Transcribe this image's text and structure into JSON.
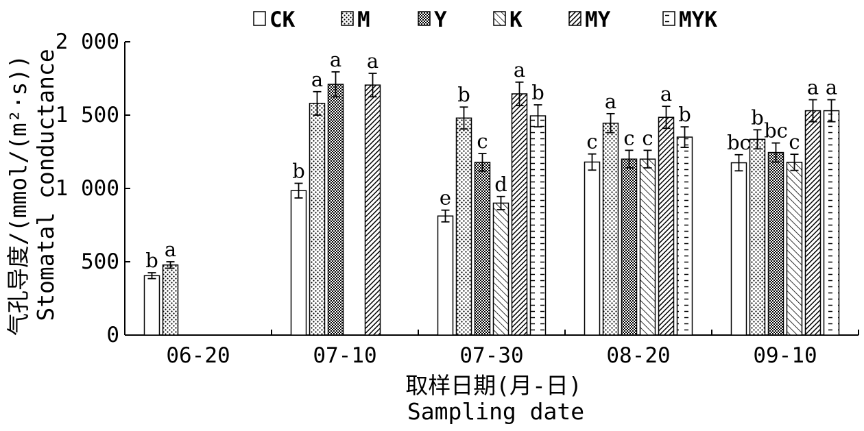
{
  "chart_data": {
    "type": "bar",
    "categories": [
      "06-20",
      "07-10",
      "07-30",
      "08-20",
      "09-10"
    ],
    "xlabel_cn": "取样日期(月-日)",
    "xlabel_en": "Sampling date",
    "ylabel_cn": "气孔导度/(mmol/(m²·s))",
    "ylabel_en": "Stomatal conductance",
    "ylim": [
      0,
      2000
    ],
    "yticks": [
      0,
      500,
      1000,
      1500,
      2000
    ],
    "ytick_labels": [
      "0",
      "500",
      "1 000",
      "1 500",
      "2 000"
    ],
    "legend_position": "top",
    "series": [
      {
        "name": "CK",
        "pattern": "plain",
        "values": [
          405,
          985,
          812,
          1180,
          1175
        ],
        "errors": [
          20,
          50,
          40,
          55,
          55
        ],
        "labels": [
          "b",
          "b",
          "e",
          "c",
          "bc"
        ]
      },
      {
        "name": "M",
        "pattern": "dots",
        "values": [
          478,
          1580,
          1480,
          1445,
          1335
        ],
        "errors": [
          22,
          80,
          75,
          65,
          65
        ],
        "labels": [
          "a",
          "a",
          "b",
          "a",
          "b"
        ]
      },
      {
        "name": "Y",
        "pattern": "checker",
        "values": [
          null,
          1710,
          1178,
          1200,
          1245
        ],
        "errors": [
          null,
          85,
          60,
          60,
          65
        ],
        "labels": [
          "",
          "a",
          "c",
          "c",
          "bc"
        ]
      },
      {
        "name": "K",
        "pattern": "diag",
        "values": [
          null,
          null,
          900,
          1200,
          1178
        ],
        "errors": [
          null,
          null,
          45,
          60,
          55
        ],
        "labels": [
          "",
          "",
          "d",
          "c",
          "c"
        ]
      },
      {
        "name": "MY",
        "pattern": "diagdense",
        "values": [
          null,
          1705,
          1645,
          1485,
          1530
        ],
        "errors": [
          null,
          80,
          80,
          75,
          75
        ],
        "labels": [
          "",
          "a",
          "a",
          "a",
          "a"
        ]
      },
      {
        "name": "MYK",
        "pattern": "dashes",
        "values": [
          null,
          null,
          1495,
          1350,
          1530
        ],
        "errors": [
          null,
          null,
          75,
          70,
          75
        ],
        "labels": [
          "",
          "",
          "b",
          "b",
          "a"
        ]
      }
    ]
  }
}
